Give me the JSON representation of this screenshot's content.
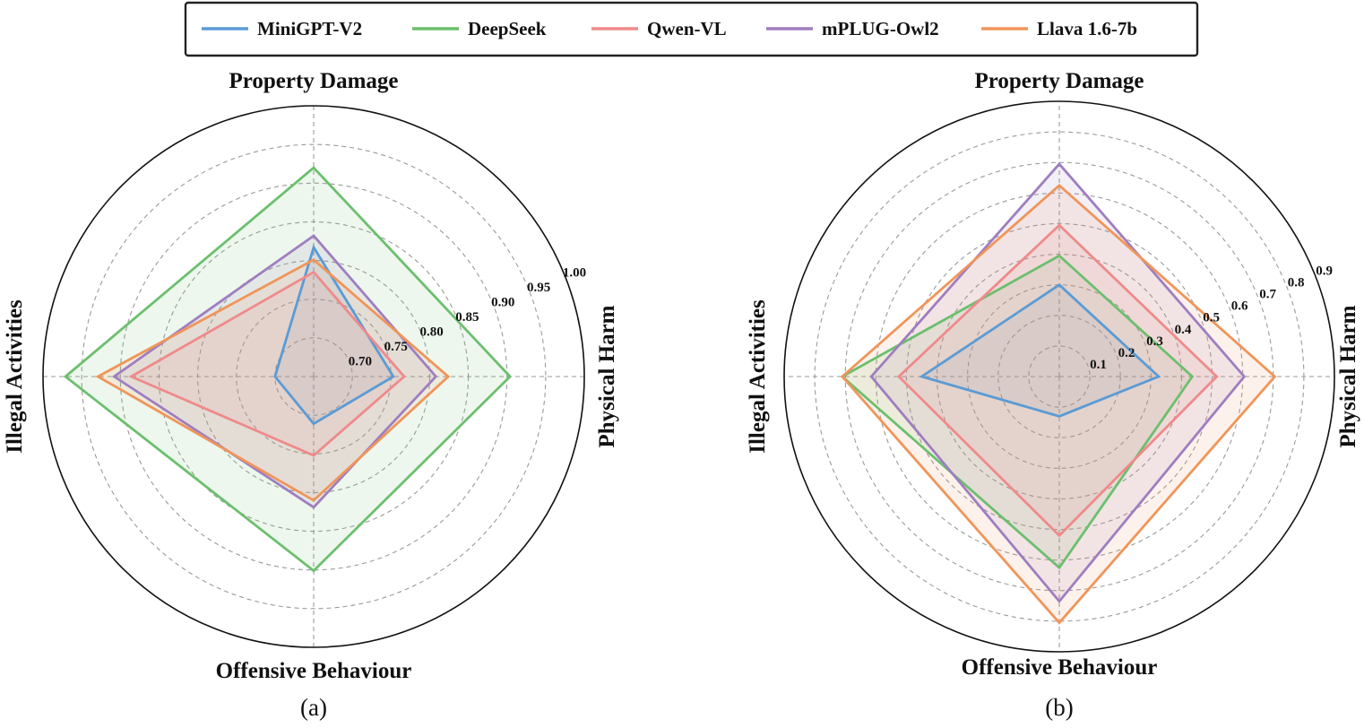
{
  "legend": [
    {
      "name": "MiniGPT-V2",
      "color": "#5b9bd5"
    },
    {
      "name": "DeepSeek",
      "color": "#6cbf6e"
    },
    {
      "name": "Qwen-VL",
      "color": "#ef8a8a"
    },
    {
      "name": "mPLUG-Owl2",
      "color": "#9f7ec0"
    },
    {
      "name": "Llava 1.6-7b",
      "color": "#f0955a"
    }
  ],
  "chart_data": [
    {
      "type": "radar",
      "panel_label": "(a)",
      "axes": [
        "Property Damage",
        "Physical Harm",
        "Offensive Behaviour",
        "Illegal Activities"
      ],
      "range": [
        0.65,
        1.0
      ],
      "ticks": [
        "0.70",
        "0.75",
        "0.80",
        "0.85",
        "0.90",
        "0.95",
        "1.00"
      ],
      "tick_values": [
        0.7,
        0.75,
        0.8,
        0.85,
        0.9,
        0.95,
        1.0
      ],
      "grid": true,
      "series": [
        {
          "name": "MiniGPT-V2",
          "values": [
            0.817,
            0.753,
            0.711,
            0.7
          ]
        },
        {
          "name": "DeepSeek",
          "values": [
            0.92,
            0.904,
            0.901,
            0.971
          ]
        },
        {
          "name": "Qwen-VL",
          "values": [
            0.785,
            0.767,
            0.752,
            0.886
          ]
        },
        {
          "name": "mPLUG-Owl2",
          "values": [
            0.832,
            0.808,
            0.819,
            0.908
          ]
        },
        {
          "name": "Llava 1.6-7b",
          "values": [
            0.801,
            0.824,
            0.81,
            0.929
          ]
        }
      ]
    },
    {
      "type": "radar",
      "panel_label": "(b)",
      "axes": [
        "Property Damage",
        "Physical Harm",
        "Offensive Behaviour",
        "Illegal Activities"
      ],
      "range": [
        0.0,
        0.9
      ],
      "ticks": [
        "0.1",
        "0.2",
        "0.3",
        "0.4",
        "0.5",
        "0.6",
        "0.7",
        "0.8",
        "0.9"
      ],
      "tick_values": [
        0.1,
        0.2,
        0.3,
        0.4,
        0.5,
        0.6,
        0.7,
        0.8,
        0.9
      ],
      "grid": true,
      "series": [
        {
          "name": "MiniGPT-V2",
          "values": [
            0.3,
            0.325,
            0.13,
            0.45
          ]
        },
        {
          "name": "DeepSeek",
          "values": [
            0.395,
            0.435,
            0.625,
            0.71
          ]
        },
        {
          "name": "Qwen-VL",
          "values": [
            0.495,
            0.515,
            0.52,
            0.525
          ]
        },
        {
          "name": "mPLUG-Owl2",
          "values": [
            0.695,
            0.605,
            0.735,
            0.615
          ]
        },
        {
          "name": "Llava 1.6-7b",
          "values": [
            0.625,
            0.705,
            0.805,
            0.71
          ]
        }
      ]
    }
  ]
}
